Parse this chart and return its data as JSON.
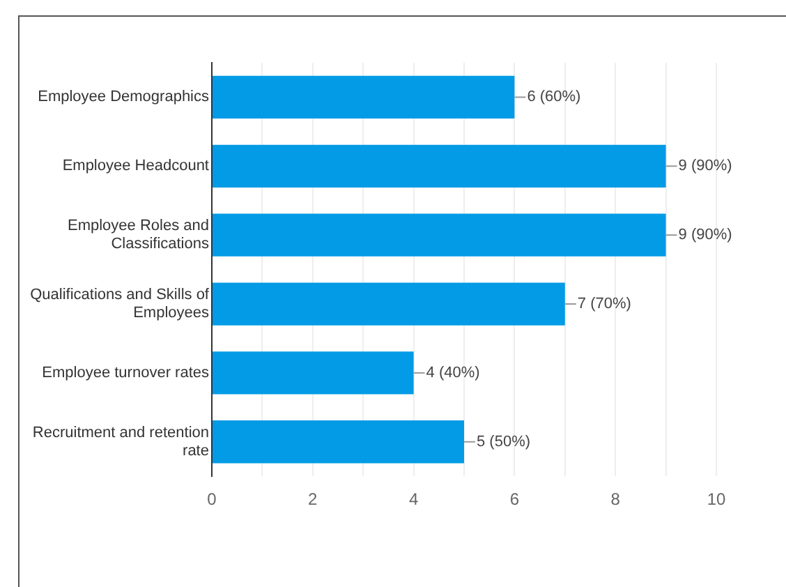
{
  "chart_data": {
    "type": "bar",
    "orientation": "horizontal",
    "categories": [
      "Employee Demographics",
      "Employee Headcount",
      "Employee Roles and Classifications",
      "Qualifications and Skills of Employees",
      "Employee turnover rates",
      "Recruitment and retention rate"
    ],
    "values": [
      6,
      9,
      9,
      7,
      4,
      5
    ],
    "color": "#039be5",
    "value_labels": [
      "6 (60%)",
      "9 (90%)",
      "9 (90%)",
      "7 (70%)",
      "4 (40%)",
      "5 (50%)"
    ],
    "xlim": [
      0,
      10
    ],
    "xticks": [
      0,
      {
        "value": 1,
        "label": null
      },
      2,
      {
        "value": 3,
        "label": null
      },
      4,
      {
        "value": 5,
        "label": null
      },
      6,
      {
        "value": 7,
        "label": null
      },
      8,
      {
        "value": 9,
        "label": null
      },
      10
    ],
    "grid": "x",
    "legend": false
  }
}
